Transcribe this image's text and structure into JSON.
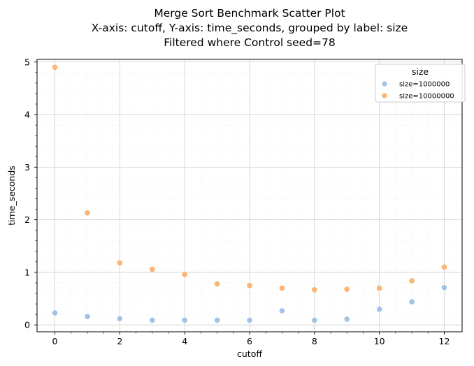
{
  "chart_data": {
    "type": "scatter",
    "title_lines": [
      "Merge Sort Benchmark Scatter Plot",
      "X-axis: cutoff, Y-axis: time_seconds, grouped by label: size",
      "Filtered where Control seed=78"
    ],
    "xlabel": "cutoff",
    "ylabel": "time_seconds",
    "xlim": [
      -0.55,
      12.55
    ],
    "ylim": [
      -0.13,
      5.05
    ],
    "x_major_ticks": [
      0,
      2,
      4,
      6,
      8,
      10,
      12
    ],
    "x_tick_labels": [
      "0",
      "2",
      "4",
      "6",
      "8",
      "10",
      "12"
    ],
    "y_major_ticks": [
      0,
      1,
      2,
      3,
      4,
      5
    ],
    "y_tick_labels": [
      "0",
      "1",
      "2",
      "3",
      "4",
      "5"
    ],
    "grid": true,
    "minor_grid": true,
    "legend": {
      "title": "size",
      "placement": "top-right"
    },
    "series": [
      {
        "name": "size=1000000",
        "color": "#a1c3e8",
        "points": [
          [
            0,
            0.23
          ],
          [
            1,
            0.16
          ],
          [
            2,
            0.12
          ],
          [
            3,
            0.09
          ],
          [
            4,
            0.09
          ],
          [
            5,
            0.09
          ],
          [
            6,
            0.09
          ],
          [
            7,
            0.27
          ],
          [
            8,
            0.09
          ],
          [
            9,
            0.11
          ],
          [
            10,
            0.3
          ],
          [
            11,
            0.44
          ],
          [
            12,
            0.71
          ]
        ]
      },
      {
        "name": "size=10000000",
        "color": "#fbb472",
        "points": [
          [
            0,
            4.9
          ],
          [
            1,
            2.13
          ],
          [
            2,
            1.18
          ],
          [
            3,
            1.06
          ],
          [
            4,
            0.96
          ],
          [
            5,
            0.78
          ],
          [
            6,
            0.75
          ],
          [
            7,
            0.7
          ],
          [
            8,
            0.67
          ],
          [
            9,
            0.68
          ],
          [
            10,
            0.7
          ],
          [
            11,
            0.84
          ],
          [
            12,
            1.1
          ]
        ]
      }
    ]
  }
}
